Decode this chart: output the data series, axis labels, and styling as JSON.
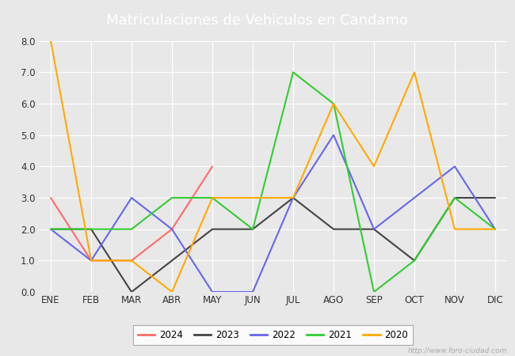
{
  "title": "Matriculaciones de Vehiculos en Candamo",
  "months": [
    "ENE",
    "FEB",
    "MAR",
    "ABR",
    "MAY",
    "JUN",
    "JUL",
    "AGO",
    "SEP",
    "OCT",
    "NOV",
    "DIC"
  ],
  "series": {
    "2024": [
      3,
      1,
      1,
      2,
      4,
      null,
      null,
      null,
      null,
      null,
      null,
      null
    ],
    "2023": [
      2,
      2,
      0,
      1,
      2,
      2,
      3,
      2,
      2,
      1,
      3,
      3
    ],
    "2022": [
      2,
      1,
      3,
      2,
      0,
      0,
      3,
      5,
      2,
      3,
      4,
      2
    ],
    "2021": [
      2,
      2,
      2,
      3,
      3,
      2,
      7,
      6,
      0,
      1,
      3,
      2
    ],
    "2020": [
      8,
      1,
      1,
      0,
      3,
      3,
      3,
      6,
      4,
      7,
      2,
      2
    ]
  },
  "colors": {
    "2024": "#ff6b6b",
    "2023": "#444444",
    "2022": "#6666ee",
    "2021": "#33cc33",
    "2020": "#ffaa00"
  },
  "ylim": [
    0.0,
    8.0
  ],
  "yticks": [
    0.0,
    1.0,
    2.0,
    3.0,
    4.0,
    5.0,
    6.0,
    7.0,
    8.0
  ],
  "plot_bg_color": "#e8e8e8",
  "title_bg_color": "#3d9cd4",
  "title_color": "#ffffff",
  "title_fontsize": 13,
  "tick_fontsize": 8.5,
  "legend_fontsize": 8.5,
  "watermark": "http://www.foro-ciudad.com"
}
